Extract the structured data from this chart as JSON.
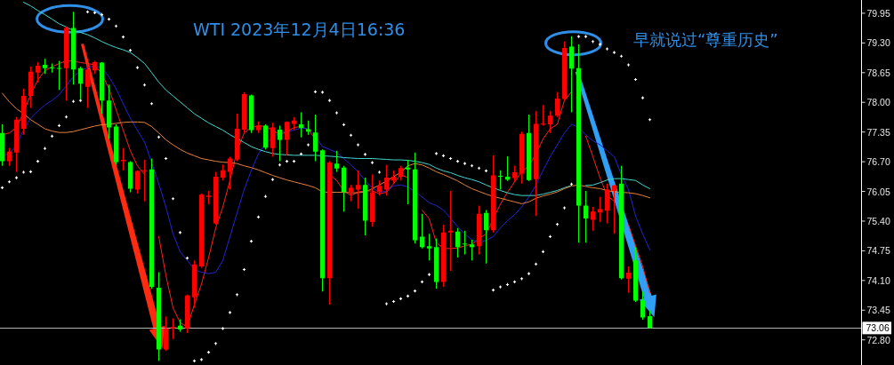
{
  "chart_data": {
    "type": "candlestick",
    "title": "WTI 2023年12月4日16:36",
    "annotations": [
      "早就说过“尊重历史”"
    ],
    "categories": [
      null,
      null,
      null,
      null,
      null,
      null,
      null,
      null,
      null,
      null,
      null,
      null,
      null,
      null,
      null,
      null,
      null,
      null,
      null,
      null,
      null,
      null,
      null,
      null,
      null,
      null,
      null,
      null,
      null,
      null,
      null,
      null,
      null,
      null,
      null,
      null,
      null,
      null,
      null,
      null,
      null,
      null,
      null,
      null,
      null,
      null,
      null,
      null,
      null,
      null,
      null,
      null,
      null,
      null,
      null,
      null,
      null,
      null,
      null,
      null,
      null,
      null,
      null,
      null,
      null,
      null,
      null,
      null,
      null,
      null,
      null,
      null,
      null,
      null,
      null,
      null,
      null,
      null,
      null,
      null,
      null,
      null,
      null,
      null,
      null,
      null,
      null,
      null,
      null,
      null,
      null,
      null
    ],
    "ohlc": [
      [
        77.33,
        77.52,
        76.61,
        76.71
      ],
      [
        76.71,
        77.0,
        76.61,
        76.92
      ],
      [
        76.9,
        77.68,
        76.48,
        77.62
      ],
      [
        77.42,
        78.3,
        77.29,
        78.14
      ],
      [
        78.14,
        78.78,
        77.88,
        78.67
      ],
      [
        78.65,
        78.88,
        78.43,
        78.8
      ],
      [
        78.82,
        78.95,
        78.62,
        78.75
      ],
      [
        78.76,
        78.85,
        78.65,
        78.75
      ],
      [
        78.75,
        78.91,
        78.27,
        78.74
      ],
      [
        78.75,
        79.66,
        78.04,
        79.63
      ],
      [
        79.63,
        79.98,
        78.39,
        78.72
      ],
      [
        78.75,
        78.78,
        78.07,
        78.41
      ],
      [
        78.34,
        78.85,
        77.88,
        78.72
      ],
      [
        78.7,
        78.91,
        78.62,
        78.88
      ],
      [
        78.87,
        78.88,
        77.75,
        78.04
      ],
      [
        78.04,
        78.39,
        77.2,
        77.45
      ],
      [
        77.47,
        77.52,
        76.64,
        76.69
      ],
      [
        76.71,
        77.0,
        76.51,
        76.74
      ],
      [
        76.69,
        76.71,
        76.03,
        76.11
      ],
      [
        76.09,
        76.51,
        76.0,
        76.5
      ],
      [
        76.5,
        76.74,
        75.83,
        76.51
      ],
      [
        76.53,
        76.77,
        73.92,
        73.96
      ],
      [
        73.94,
        74.28,
        72.34,
        72.59
      ],
      [
        72.59,
        73.31,
        72.56,
        73.05
      ],
      [
        73.05,
        73.27,
        72.82,
        73.08
      ],
      [
        73.11,
        73.25,
        72.98,
        73.03
      ],
      [
        73.05,
        73.79,
        72.95,
        73.77
      ],
      [
        73.73,
        74.54,
        73.5,
        74.45
      ],
      [
        74.41,
        76.0,
        74.38,
        75.98
      ],
      [
        75.93,
        76.06,
        75.77,
        75.96
      ],
      [
        75.35,
        76.48,
        75.32,
        76.37
      ],
      [
        76.35,
        76.64,
        76.29,
        76.51
      ],
      [
        76.48,
        76.81,
        76.09,
        76.77
      ],
      [
        76.75,
        77.75,
        76.71,
        77.42
      ],
      [
        77.4,
        78.22,
        77.33,
        78.18
      ],
      [
        78.15,
        78.17,
        77.33,
        77.39
      ],
      [
        77.39,
        77.58,
        77.33,
        77.49
      ],
      [
        77.49,
        77.52,
        76.97,
        77.01
      ],
      [
        77.0,
        77.55,
        76.81,
        77.45
      ],
      [
        77.4,
        77.49,
        76.71,
        77.18
      ],
      [
        77.18,
        77.58,
        76.84,
        77.57
      ],
      [
        77.53,
        77.68,
        77.39,
        77.6
      ],
      [
        77.52,
        77.78,
        77.23,
        77.44
      ],
      [
        77.41,
        77.6,
        77.29,
        77.36
      ],
      [
        77.34,
        77.73,
        76.71,
        76.92
      ],
      [
        76.95,
        76.97,
        73.86,
        74.15
      ],
      [
        74.15,
        76.71,
        73.57,
        76.68
      ],
      [
        76.66,
        76.94,
        76.48,
        76.55
      ],
      [
        76.57,
        76.61,
        75.61,
        76.04
      ],
      [
        76.03,
        76.19,
        75.83,
        76.13
      ],
      [
        76.09,
        76.51,
        75.67,
        76.19
      ],
      [
        76.19,
        76.35,
        75.09,
        75.41
      ],
      [
        75.38,
        76.42,
        75.28,
        76.03
      ],
      [
        76.04,
        76.29,
        75.96,
        76.17
      ],
      [
        76.09,
        76.63,
        75.96,
        76.35
      ],
      [
        76.29,
        76.51,
        76.22,
        76.37
      ],
      [
        76.37,
        76.61,
        76.29,
        76.56
      ],
      [
        76.57,
        76.74,
        75.77,
        76.53
      ],
      [
        76.53,
        76.9,
        74.91,
        74.98
      ],
      [
        75.06,
        75.56,
        74.8,
        74.83
      ],
      [
        74.85,
        75.12,
        74.54,
        74.8
      ],
      [
        74.83,
        75.02,
        73.92,
        74.07
      ],
      [
        74.07,
        75.32,
        73.96,
        75.15
      ],
      [
        75.15,
        76.06,
        74.31,
        75.19
      ],
      [
        75.17,
        75.25,
        74.6,
        74.83
      ],
      [
        74.91,
        75.19,
        74.67,
        74.89
      ],
      [
        74.89,
        74.99,
        74.54,
        74.83
      ],
      [
        74.85,
        75.74,
        74.67,
        75.56
      ],
      [
        75.58,
        75.64,
        74.47,
        75.2
      ],
      [
        75.2,
        76.84,
        75.15,
        76.4
      ],
      [
        76.39,
        76.51,
        76.09,
        76.37
      ],
      [
        76.37,
        76.82,
        76.28,
        76.31
      ],
      [
        76.34,
        76.61,
        76.26,
        76.47
      ],
      [
        76.44,
        77.36,
        76.22,
        77.31
      ],
      [
        77.33,
        77.73,
        76.28,
        76.3
      ],
      [
        76.32,
        77.81,
        75.51,
        77.53
      ],
      [
        77.52,
        77.94,
        77.49,
        77.53
      ],
      [
        77.52,
        77.81,
        77.33,
        77.71
      ],
      [
        77.71,
        78.23,
        77.68,
        78.08
      ],
      [
        78.07,
        79.33,
        78.04,
        79.19
      ],
      [
        79.22,
        79.45,
        77.78,
        78.74
      ],
      [
        78.75,
        79.27,
        74.93,
        75.74
      ],
      [
        75.74,
        76.06,
        74.93,
        75.46
      ],
      [
        75.43,
        75.71,
        75.19,
        75.61
      ],
      [
        75.59,
        75.93,
        75.38,
        75.66
      ],
      [
        75.63,
        76.22,
        75.35,
        76.09
      ],
      [
        76.06,
        76.19,
        75.12,
        76.18
      ],
      [
        76.22,
        76.61,
        74.12,
        74.15
      ],
      [
        74.14,
        74.41,
        73.83,
        74.27
      ],
      [
        74.54,
        74.83,
        73.63,
        73.66
      ],
      [
        73.66,
        73.86,
        73.24,
        73.29
      ],
      [
        73.32,
        73.44,
        73.05,
        73.06
      ]
    ],
    "colors": [
      "#00ff00",
      "#ff0000",
      "#ff0000",
      "#ff0000",
      "#ff0000",
      "#ff0000",
      "#00ff00",
      "#00ff00",
      "#00ff00",
      "#ff0000",
      "#00ff00",
      "#00ff00",
      "#ff0000",
      "#ff0000",
      "#00ff00",
      "#00ff00",
      "#00ff00",
      "#ff0000",
      "#00ff00",
      "#ff0000",
      "#ff0000",
      "#00ff00",
      "#00ff00",
      "#ff0000",
      "#ff0000",
      "#00ff00",
      "#ff0000",
      "#ff0000",
      "#ff0000",
      "#ff0000",
      "#ff0000",
      "#ff0000",
      "#ff0000",
      "#ff0000",
      "#ff0000",
      "#00ff00",
      "#ff0000",
      "#00ff00",
      "#ff0000",
      "#00ff00",
      "#ff0000",
      "#ff0000",
      "#00ff00",
      "#00ff00",
      "#00ff00",
      "#00ff00",
      "#ff0000",
      "#00ff00",
      "#00ff00",
      "#ff0000",
      "#ff0000",
      "#00ff00",
      "#ff0000",
      "#ff0000",
      "#ff0000",
      "#ff0000",
      "#ff0000",
      "#00ff00",
      "#00ff00",
      "#00ff00",
      "#00ff00",
      "#00ff00",
      "#ff0000",
      "#ff0000",
      "#00ff00",
      "#00ff00",
      "#00ff00",
      "#ff0000",
      "#00ff00",
      "#ff0000",
      "#00ff00",
      "#00ff00",
      "#ff0000",
      "#ff0000",
      "#00ff00",
      "#ff0000",
      "#ff0000",
      "#ff0000",
      "#ff0000",
      "#ff0000",
      "#00ff00",
      "#00ff00",
      "#00ff00",
      "#ff0000",
      "#ff0000",
      "#ff0000",
      "#ff0000",
      "#00ff00",
      "#ff0000",
      "#00ff00",
      "#00ff00",
      "#00ff00"
    ],
    "series": [
      {
        "type": "line",
        "color": "#ff2020",
        "values": [
          77.29,
          77.33,
          77.45,
          77.78,
          78.17,
          78.49,
          78.69,
          78.78,
          78.85,
          78.91,
          78.9,
          78.87,
          78.85,
          78.82,
          78.62,
          78.3,
          77.84,
          77.39,
          76.94,
          76.61,
          76.42,
          null,
          75.06,
          74.21,
          73.5,
          73.18,
          73.08,
          73.57,
          74.02,
          74.6,
          75.25,
          75.71,
          76.29,
          76.94,
          77.33,
          77.45,
          77.49,
          77.47,
          77.39,
          77.29,
          77.36,
          77.45,
          77.47,
          77.4,
          77.2,
          null,
          76.42,
          76.29,
          76.06,
          75.96,
          76.04,
          76.06,
          76.06,
          76.0,
          76.03,
          76.22,
          76.42,
          76.35,
          null,
          75.64,
          75.45,
          74.93,
          74.8,
          74.8,
          74.81,
          74.86,
          74.89,
          75.02,
          75.12,
          75.45,
          75.77,
          76.03,
          76.26,
          76.48,
          76.61,
          76.87,
          77.2,
          77.42,
          77.52,
          78.04,
          78.23,
          null,
          77.26,
          76.81,
          76.35,
          75.96,
          75.83,
          null,
          75.32,
          74.86,
          74.41,
          73.83
        ]
      },
      {
        "type": "line",
        "color": "#2424d8",
        "values": [
          76.84,
          76.87,
          77.07,
          77.39,
          77.65,
          77.81,
          77.94,
          78.04,
          78.17,
          78.36,
          78.56,
          78.69,
          78.76,
          78.8,
          78.75,
          78.56,
          78.3,
          77.97,
          77.65,
          77.39,
          77.13,
          76.68,
          76.22,
          75.71,
          75.12,
          74.73,
          74.54,
          74.34,
          74.28,
          74.25,
          74.28,
          74.54,
          75.06,
          75.58,
          76.09,
          76.51,
          76.87,
          77.1,
          77.23,
          77.33,
          77.36,
          77.39,
          77.44,
          77.42,
          77.26,
          77.03,
          76.97,
          76.9,
          76.77,
          76.63,
          76.48,
          76.29,
          76.13,
          76.03,
          76.06,
          76.17,
          76.19,
          76.15,
          76.04,
          75.93,
          75.8,
          75.74,
          75.64,
          75.46,
          75.28,
          75.12,
          74.99,
          74.93,
          74.98,
          75.06,
          75.25,
          75.41,
          75.54,
          75.71,
          75.93,
          76.19,
          76.51,
          76.81,
          77.07,
          77.33,
          77.52,
          77.45,
          77.29,
          77.16,
          77.07,
          76.94,
          76.81,
          76.42,
          76.09,
          75.51,
          75.12,
          74.77
        ]
      },
      {
        "type": "line",
        "color": "#40d8d0",
        "values": [
          null,
          null,
          null,
          80.19,
          80.11,
          80.01,
          79.92,
          79.82,
          79.72,
          79.65,
          79.57,
          79.53,
          79.48,
          79.41,
          79.33,
          79.26,
          79.2,
          79.15,
          79.09,
          78.98,
          78.85,
          78.65,
          78.44,
          78.27,
          78.14,
          78.01,
          77.88,
          77.75,
          77.65,
          77.55,
          77.47,
          77.39,
          77.29,
          77.21,
          77.12,
          77.03,
          76.97,
          76.92,
          76.88,
          76.86,
          76.85,
          76.84,
          76.84,
          76.84,
          76.84,
          76.83,
          76.82,
          76.81,
          76.79,
          76.78,
          76.77,
          76.77,
          76.77,
          76.76,
          76.75,
          76.74,
          76.74,
          76.73,
          76.71,
          76.68,
          76.64,
          76.56,
          76.5,
          76.46,
          76.4,
          76.35,
          76.31,
          76.26,
          76.19,
          76.13,
          76.07,
          76.02,
          75.98,
          75.96,
          75.96,
          75.96,
          75.99,
          76.03,
          76.07,
          76.13,
          76.18,
          null,
          76.18,
          76.19,
          76.24,
          76.3,
          76.33,
          76.33,
          76.31,
          76.29,
          76.19,
          76.11
        ]
      },
      {
        "type": "line",
        "color": "#e8803a",
        "values": [
          78.2,
          78.01,
          77.86,
          77.75,
          77.62,
          77.52,
          77.42,
          77.37,
          77.34,
          77.34,
          77.36,
          77.4,
          77.44,
          77.48,
          77.51,
          77.52,
          77.54,
          77.56,
          77.57,
          77.57,
          77.56,
          77.47,
          77.33,
          77.18,
          77.07,
          76.97,
          76.89,
          76.83,
          76.77,
          76.74,
          76.71,
          76.69,
          76.68,
          76.66,
          76.61,
          76.57,
          76.52,
          76.46,
          76.4,
          76.35,
          76.3,
          76.26,
          76.22,
          76.18,
          76.13,
          76.04,
          76.03,
          76.03,
          76.03,
          76.02,
          76.02,
          76.04,
          76.11,
          76.19,
          76.28,
          76.37,
          76.47,
          76.61,
          76.66,
          76.63,
          76.56,
          76.48,
          76.42,
          76.35,
          76.28,
          76.19,
          76.11,
          76.05,
          75.99,
          75.94,
          75.9,
          75.86,
          75.82,
          75.78,
          75.82,
          75.9,
          75.95,
          75.99,
          76.04,
          76.11,
          76.17,
          76.19,
          76.16,
          76.13,
          76.11,
          76.07,
          76.04,
          76.03,
          76.02,
          76.0,
          75.96,
          75.91
        ]
      },
      {
        "type": "scatter",
        "color": "#ffffff",
        "marker": "cross",
        "values": [
          76.13,
          76.26,
          76.35,
          76.47,
          76.48,
          76.71,
          76.99,
          77.26,
          77.49,
          77.68,
          78.02,
          78.04,
          79.98,
          79.96,
          79.92,
          79.82,
          79.67,
          79.43,
          79.14,
          78.76,
          78.38,
          77.97,
          77.24,
          76.77,
          75.89,
          75.15,
          74.59,
          72.34,
          72.37,
          72.53,
          72.72,
          73.05,
          73.4,
          73.79,
          74.34,
          74.96,
          75.49,
          75.94,
          76.31,
          76.63,
          76.71,
          76.71,
          76.87,
          77.07,
          78.23,
          78.22,
          78.04,
          77.77,
          77.51,
          77.28,
          77.07,
          76.86,
          76.68,
          76.47,
          73.59,
          73.64,
          73.7,
          73.76,
          73.87,
          74.07,
          74.23,
          76.88,
          76.83,
          76.77,
          76.71,
          76.66,
          76.61,
          76.56,
          76.5,
          73.89,
          73.96,
          74.01,
          74.07,
          74.14,
          74.25,
          74.46,
          74.73,
          75.06,
          75.33,
          75.69,
          76.21,
          79.44,
          79.44,
          79.33,
          79.27,
          79.17,
          79.09,
          79.01,
          78.82,
          78.5,
          78.1,
          77.62
        ]
      }
    ],
    "ylim": [
      72.25,
      80.24
    ],
    "yticks": [
      79.95,
      {
        "value": 79.3,
        "label": "79.30"
      },
      78.65,
      {
        "value": 78,
        "label": "78.00"
      },
      77.35,
      {
        "value": 76.7,
        "label": "76.70"
      },
      76.05,
      {
        "value": 75.4,
        "label": "75.40"
      },
      74.75,
      {
        "value": 74.1,
        "label": "74.10"
      },
      73.45,
      {
        "value": 72.8,
        "label": "72.80"
      }
    ],
    "ref_lines": [
      {
        "axis": "y",
        "value": 73.06,
        "label": "73.06",
        "color": "#b4b4b4"
      }
    ],
    "tick_labels": "y"
  }
}
